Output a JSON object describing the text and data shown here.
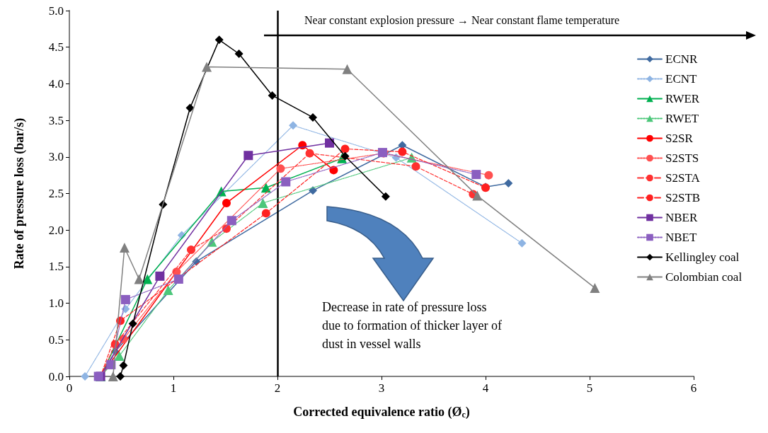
{
  "chart_data": {
    "type": "line",
    "xlabel": "Corrected equivalence ratio (Ø$_{c}$)",
    "ylabel": "Rate of pressure loss (bar/s)",
    "xlim": [
      0,
      6
    ],
    "xticks": [
      0,
      1,
      2,
      3,
      4,
      5,
      6
    ],
    "ylim": [
      0,
      5
    ],
    "yticks": [
      {
        "value": 0,
        "label": "0.0"
      },
      0.5,
      {
        "value": 1,
        "label": "1.0"
      },
      1.5,
      {
        "value": 2,
        "label": "2.0"
      },
      2.5,
      {
        "value": 3,
        "label": "3.0"
      },
      3.5,
      {
        "value": 4,
        "label": "4.0"
      },
      4.5,
      {
        "value": 5,
        "label": "5.0"
      }
    ],
    "grid": false,
    "legend": "right",
    "ref_lines": [
      {
        "axis": "x",
        "value": 2,
        "color": "#000000"
      }
    ],
    "annotations": [
      "Near constant explosion pressure → Near constant flame temperature",
      "Decrease in rate of pressure loss\ndue to formation of thicker layer of\ndust in vessel walls"
    ],
    "series": [
      {
        "name": "ECNR",
        "color": "#3f6aa0",
        "marker": "diamond",
        "line_style": "solid",
        "x": [
          0.3,
          0.44,
          1.22,
          2.34,
          3.2,
          4.0,
          4.22
        ],
        "values": [
          0,
          0.34,
          1.57,
          2.54,
          3.16,
          2.59,
          2.64
        ]
      },
      {
        "name": "ECNT",
        "color": "#8eb4e3",
        "marker": "diamond",
        "line_style": "dotted",
        "x": [
          0.15,
          0.54,
          1.08,
          2.15,
          3.14,
          4.35
        ],
        "values": [
          0,
          0.92,
          1.93,
          3.43,
          2.99,
          1.82
        ]
      },
      {
        "name": "RWER",
        "color": "#00b050",
        "marker": "triangle",
        "line_style": "solid",
        "x": [
          0.3,
          0.75,
          1.46,
          1.89,
          2.62
        ],
        "values": [
          0,
          1.33,
          2.53,
          2.58,
          2.98
        ]
      },
      {
        "name": "RWET",
        "color": "#4cc77a",
        "marker": "triangle",
        "line_style": "dotted",
        "x": [
          0.3,
          0.48,
          0.95,
          1.37,
          1.86,
          3.29
        ],
        "values": [
          0,
          0.28,
          1.18,
          1.84,
          2.37,
          2.99
        ]
      },
      {
        "name": "S2SR",
        "color": "#ff0000",
        "marker": "circle",
        "line_style": "solid",
        "x": [
          0.3,
          1.51,
          2.24,
          2.54
        ],
        "values": [
          0,
          2.37,
          3.16,
          2.82
        ]
      },
      {
        "name": "S2STS",
        "color": "#ff5050",
        "marker": "circle",
        "line_style": "dotted",
        "x": [
          0.3,
          0.52,
          1.03,
          2.03,
          3.02,
          4.03
        ],
        "values": [
          0,
          0.51,
          1.43,
          2.84,
          3.05,
          2.75
        ]
      },
      {
        "name": "S2STA",
        "color": "#ff3030",
        "marker": "circle",
        "line_style": "dashed",
        "x": [
          0.3,
          0.44,
          1.17,
          1.51,
          2.31,
          3.33,
          3.88
        ],
        "values": [
          0,
          0.44,
          1.73,
          2.02,
          3.05,
          2.87,
          2.49
        ]
      },
      {
        "name": "S2STB",
        "color": "#ff2020",
        "marker": "circle",
        "line_style": "dashed",
        "x": [
          0.3,
          0.49,
          1.89,
          2.65,
          3.2,
          4.0
        ],
        "values": [
          0,
          0.76,
          2.23,
          3.11,
          3.07,
          2.58
        ]
      },
      {
        "name": "NBER",
        "color": "#7030a0",
        "marker": "square",
        "line_style": "solid",
        "x": [
          0.3,
          0.87,
          1.72,
          2.5
        ],
        "values": [
          0,
          1.37,
          3.02,
          3.19
        ]
      },
      {
        "name": "NBET",
        "color": "#8b5fc0",
        "marker": "square",
        "line_style": "dotted",
        "x": [
          0.28,
          0.4,
          0.54,
          1.05,
          1.56,
          2.08,
          3.01,
          3.91
        ],
        "values": [
          0,
          0.16,
          1.05,
          1.33,
          2.13,
          2.66,
          3.06,
          2.76
        ]
      },
      {
        "name": "Kellingley coal",
        "color": "#000000",
        "marker": "diamond",
        "line_style": "solid",
        "x": [
          0.49,
          0.52,
          0.61,
          0.9,
          1.16,
          1.44,
          1.63,
          1.95,
          2.34,
          2.65,
          3.04
        ],
        "values": [
          0,
          0.15,
          0.72,
          2.35,
          3.67,
          4.6,
          4.41,
          3.84,
          3.54,
          3.01,
          2.46
        ]
      },
      {
        "name": "Colombian coal",
        "color": "#808080",
        "marker": "triangle",
        "line_style": "solid",
        "x": [
          0.42,
          0.53,
          0.67,
          1.32,
          2.67,
          3.92,
          5.05
        ],
        "values": [
          0,
          1.76,
          1.33,
          4.23,
          4.2,
          2.47,
          1.21
        ]
      }
    ]
  }
}
